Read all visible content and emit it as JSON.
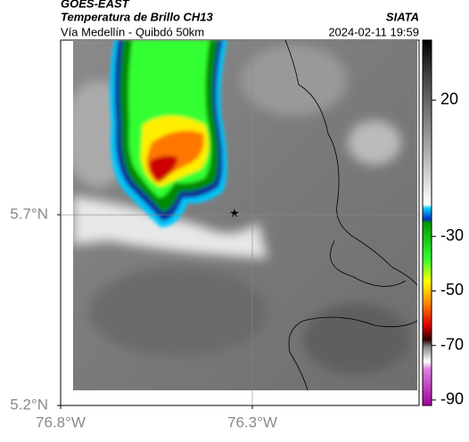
{
  "chart_data": {
    "type": "map",
    "title": "GOES-EAST",
    "subtitle": "Temperatura de Brillo CH13",
    "route": "Vía Medellín - Quibdó 50km",
    "source": "SIATA",
    "timestamp": "2024-02-11 19:59",
    "xlim": [
      -76.8,
      -75.865
    ],
    "ylim": [
      5.2,
      6.158
    ],
    "xticks": [
      {
        "value": -76.8,
        "label": "76.8°W"
      },
      {
        "value": -76.3,
        "label": "76.3°W"
      }
    ],
    "yticks": [
      {
        "value": 5.2,
        "label": "5.2°N"
      },
      {
        "value": 5.7,
        "label": "5.7°N"
      }
    ],
    "grid": true,
    "colorbar": {
      "lim": [
        -92,
        42
      ],
      "ticks": [
        20,
        -30,
        -50,
        -70,
        -90
      ]
    }
  }
}
